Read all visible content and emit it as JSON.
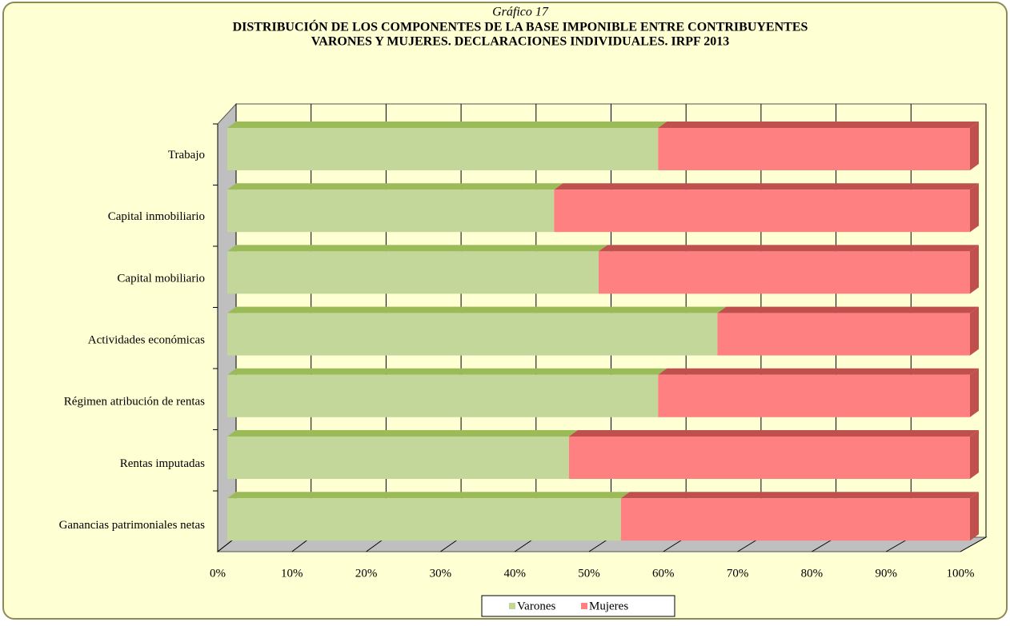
{
  "chart_data": {
    "type": "stacked_bar_horizontal",
    "caption": "Gráfico 17",
    "title": [
      "DISTRIBUCIÓN DE LOS COMPONENTES DE LA BASE IMPONIBLE ENTRE CONTRIBUYENTES",
      "VARONES Y MUJERES. DECLARACIONES INDIVIDUALES. IRPF 2013"
    ],
    "categories": [
      "Trabajo",
      "Capital inmobiliario",
      "Capital mobiliario",
      "Actividades económicas",
      "Régimen atribución de rentas",
      "Rentas imputadas",
      "Ganancias patrimoniales netas"
    ],
    "series": [
      {
        "name": "Varones",
        "color": "#c4d79b",
        "values": [
          58,
          44,
          50,
          66,
          58,
          46,
          53
        ]
      },
      {
        "name": "Mujeres",
        "color": "#ff8080",
        "values": [
          42,
          56,
          50,
          34,
          42,
          54,
          47
        ]
      }
    ],
    "xlim": [
      0,
      100
    ],
    "xticks": [
      {
        "value": 0,
        "label": "0%"
      },
      {
        "value": 10,
        "label": "10%"
      },
      {
        "value": 20,
        "label": "20%"
      },
      {
        "value": 30,
        "label": "30%"
      },
      {
        "value": 40,
        "label": "40%"
      },
      {
        "value": 50,
        "label": "50%"
      },
      {
        "value": 60,
        "label": "60%"
      },
      {
        "value": 70,
        "label": "70%"
      },
      {
        "value": 80,
        "label": "80%"
      },
      {
        "value": 90,
        "label": "90%"
      },
      {
        "value": 100,
        "label": "100%"
      }
    ],
    "grid": true,
    "legend": "bottom"
  }
}
